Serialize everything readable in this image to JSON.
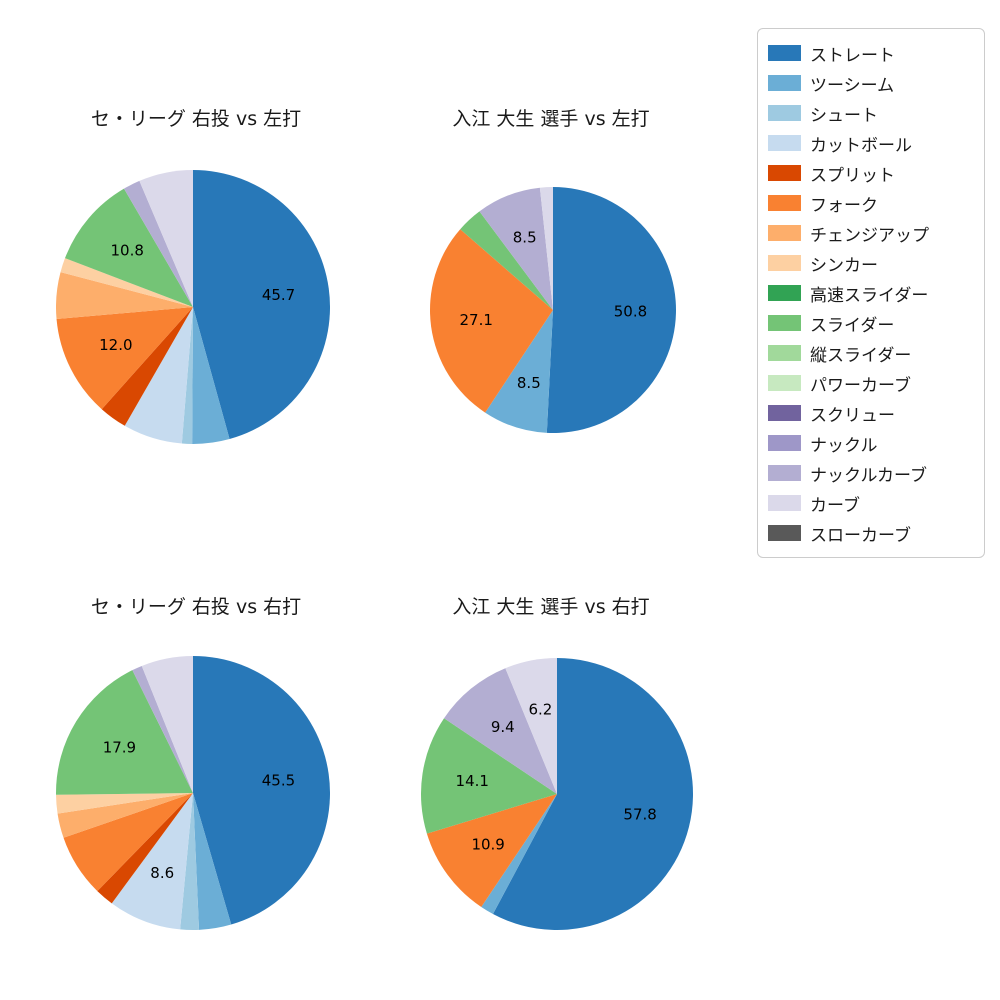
{
  "figure": {
    "background_color": "#ffffff",
    "text_color": "#1a1a1a",
    "value_label_color": "#000000"
  },
  "chart_data": {
    "type": "pie",
    "layout": "2x2 grid of pies, shared legend upper right",
    "start_angle": "top",
    "direction": "clockwise",
    "charts": [
      {
        "title": "セ・リーグ 右投 vs 左打",
        "slices": [
          {
            "name": "ストレート",
            "value": 45.7,
            "label": "45.7"
          },
          {
            "name": "ツーシーム",
            "value": 4.4,
            "label": ""
          },
          {
            "name": "シュート",
            "value": 1.2,
            "label": ""
          },
          {
            "name": "カットボール",
            "value": 7.0,
            "label": ""
          },
          {
            "name": "スプリット",
            "value": 3.3,
            "label": ""
          },
          {
            "name": "フォーク",
            "value": 12.0,
            "label": "12.0"
          },
          {
            "name": "チェンジアップ",
            "value": 5.5,
            "label": ""
          },
          {
            "name": "シンカー",
            "value": 1.7,
            "label": ""
          },
          {
            "name": "スライダー",
            "value": 10.8,
            "label": "10.8"
          },
          {
            "name": "ナックルカーブ",
            "value": 2.0,
            "label": ""
          },
          {
            "name": "カーブ",
            "value": 6.4,
            "label": ""
          }
        ]
      },
      {
        "title": "入江 大生 選手 vs 左打",
        "slices": [
          {
            "name": "ストレート",
            "value": 50.8,
            "label": "50.8"
          },
          {
            "name": "ツーシーム",
            "value": 8.5,
            "label": "8.5"
          },
          {
            "name": "フォーク",
            "value": 27.1,
            "label": "27.1"
          },
          {
            "name": "スライダー",
            "value": 3.4,
            "label": ""
          },
          {
            "name": "ナックルカーブ",
            "value": 8.5,
            "label": "8.5"
          },
          {
            "name": "カーブ",
            "value": 1.7,
            "label": ""
          }
        ]
      },
      {
        "title": "セ・リーグ 右投 vs 右打",
        "slices": [
          {
            "name": "ストレート",
            "value": 45.5,
            "label": "45.5"
          },
          {
            "name": "ツーシーム",
            "value": 3.8,
            "label": ""
          },
          {
            "name": "シュート",
            "value": 2.2,
            "label": ""
          },
          {
            "name": "カットボール",
            "value": 8.6,
            "label": "8.6"
          },
          {
            "name": "スプリット",
            "value": 2.2,
            "label": ""
          },
          {
            "name": "フォーク",
            "value": 7.4,
            "label": ""
          },
          {
            "name": "チェンジアップ",
            "value": 2.9,
            "label": ""
          },
          {
            "name": "シンカー",
            "value": 2.2,
            "label": ""
          },
          {
            "name": "スライダー",
            "value": 17.9,
            "label": "17.9"
          },
          {
            "name": "ナックルカーブ",
            "value": 1.2,
            "label": ""
          },
          {
            "name": "カーブ",
            "value": 6.1,
            "label": ""
          }
        ]
      },
      {
        "title": "入江 大生 選手 vs 右打",
        "slices": [
          {
            "name": "ストレート",
            "value": 57.8,
            "label": "57.8"
          },
          {
            "name": "ツーシーム",
            "value": 1.6,
            "label": ""
          },
          {
            "name": "フォーク",
            "value": 10.9,
            "label": "10.9"
          },
          {
            "name": "スライダー",
            "value": 14.1,
            "label": "14.1"
          },
          {
            "name": "ナックルカーブ",
            "value": 9.4,
            "label": "9.4"
          },
          {
            "name": "カーブ",
            "value": 6.2,
            "label": "6.2"
          }
        ]
      }
    ],
    "legend": {
      "position": "upper right",
      "items": [
        {
          "label": "ストレート",
          "color": "#2878b8"
        },
        {
          "label": "ツーシーム",
          "color": "#6baed6"
        },
        {
          "label": "シュート",
          "color": "#9ecae1"
        },
        {
          "label": "カットボール",
          "color": "#c6dbef"
        },
        {
          "label": "スプリット",
          "color": "#d94801"
        },
        {
          "label": "フォーク",
          "color": "#f98131"
        },
        {
          "label": "チェンジアップ",
          "color": "#fdae6b"
        },
        {
          "label": "シンカー",
          "color": "#fdd0a2"
        },
        {
          "label": "高速スライダー",
          "color": "#31a354"
        },
        {
          "label": "スライダー",
          "color": "#74c476"
        },
        {
          "label": "縦スライダー",
          "color": "#a1d99b"
        },
        {
          "label": "パワーカーブ",
          "color": "#c7e9c0"
        },
        {
          "label": "スクリュー",
          "color": "#71639e"
        },
        {
          "label": "ナックル",
          "color": "#9e97c8"
        },
        {
          "label": "ナックルカーブ",
          "color": "#b3aed2"
        },
        {
          "label": "カーブ",
          "color": "#dbd9ea"
        },
        {
          "label": "スローカーブ",
          "color": "#595959"
        }
      ]
    }
  }
}
